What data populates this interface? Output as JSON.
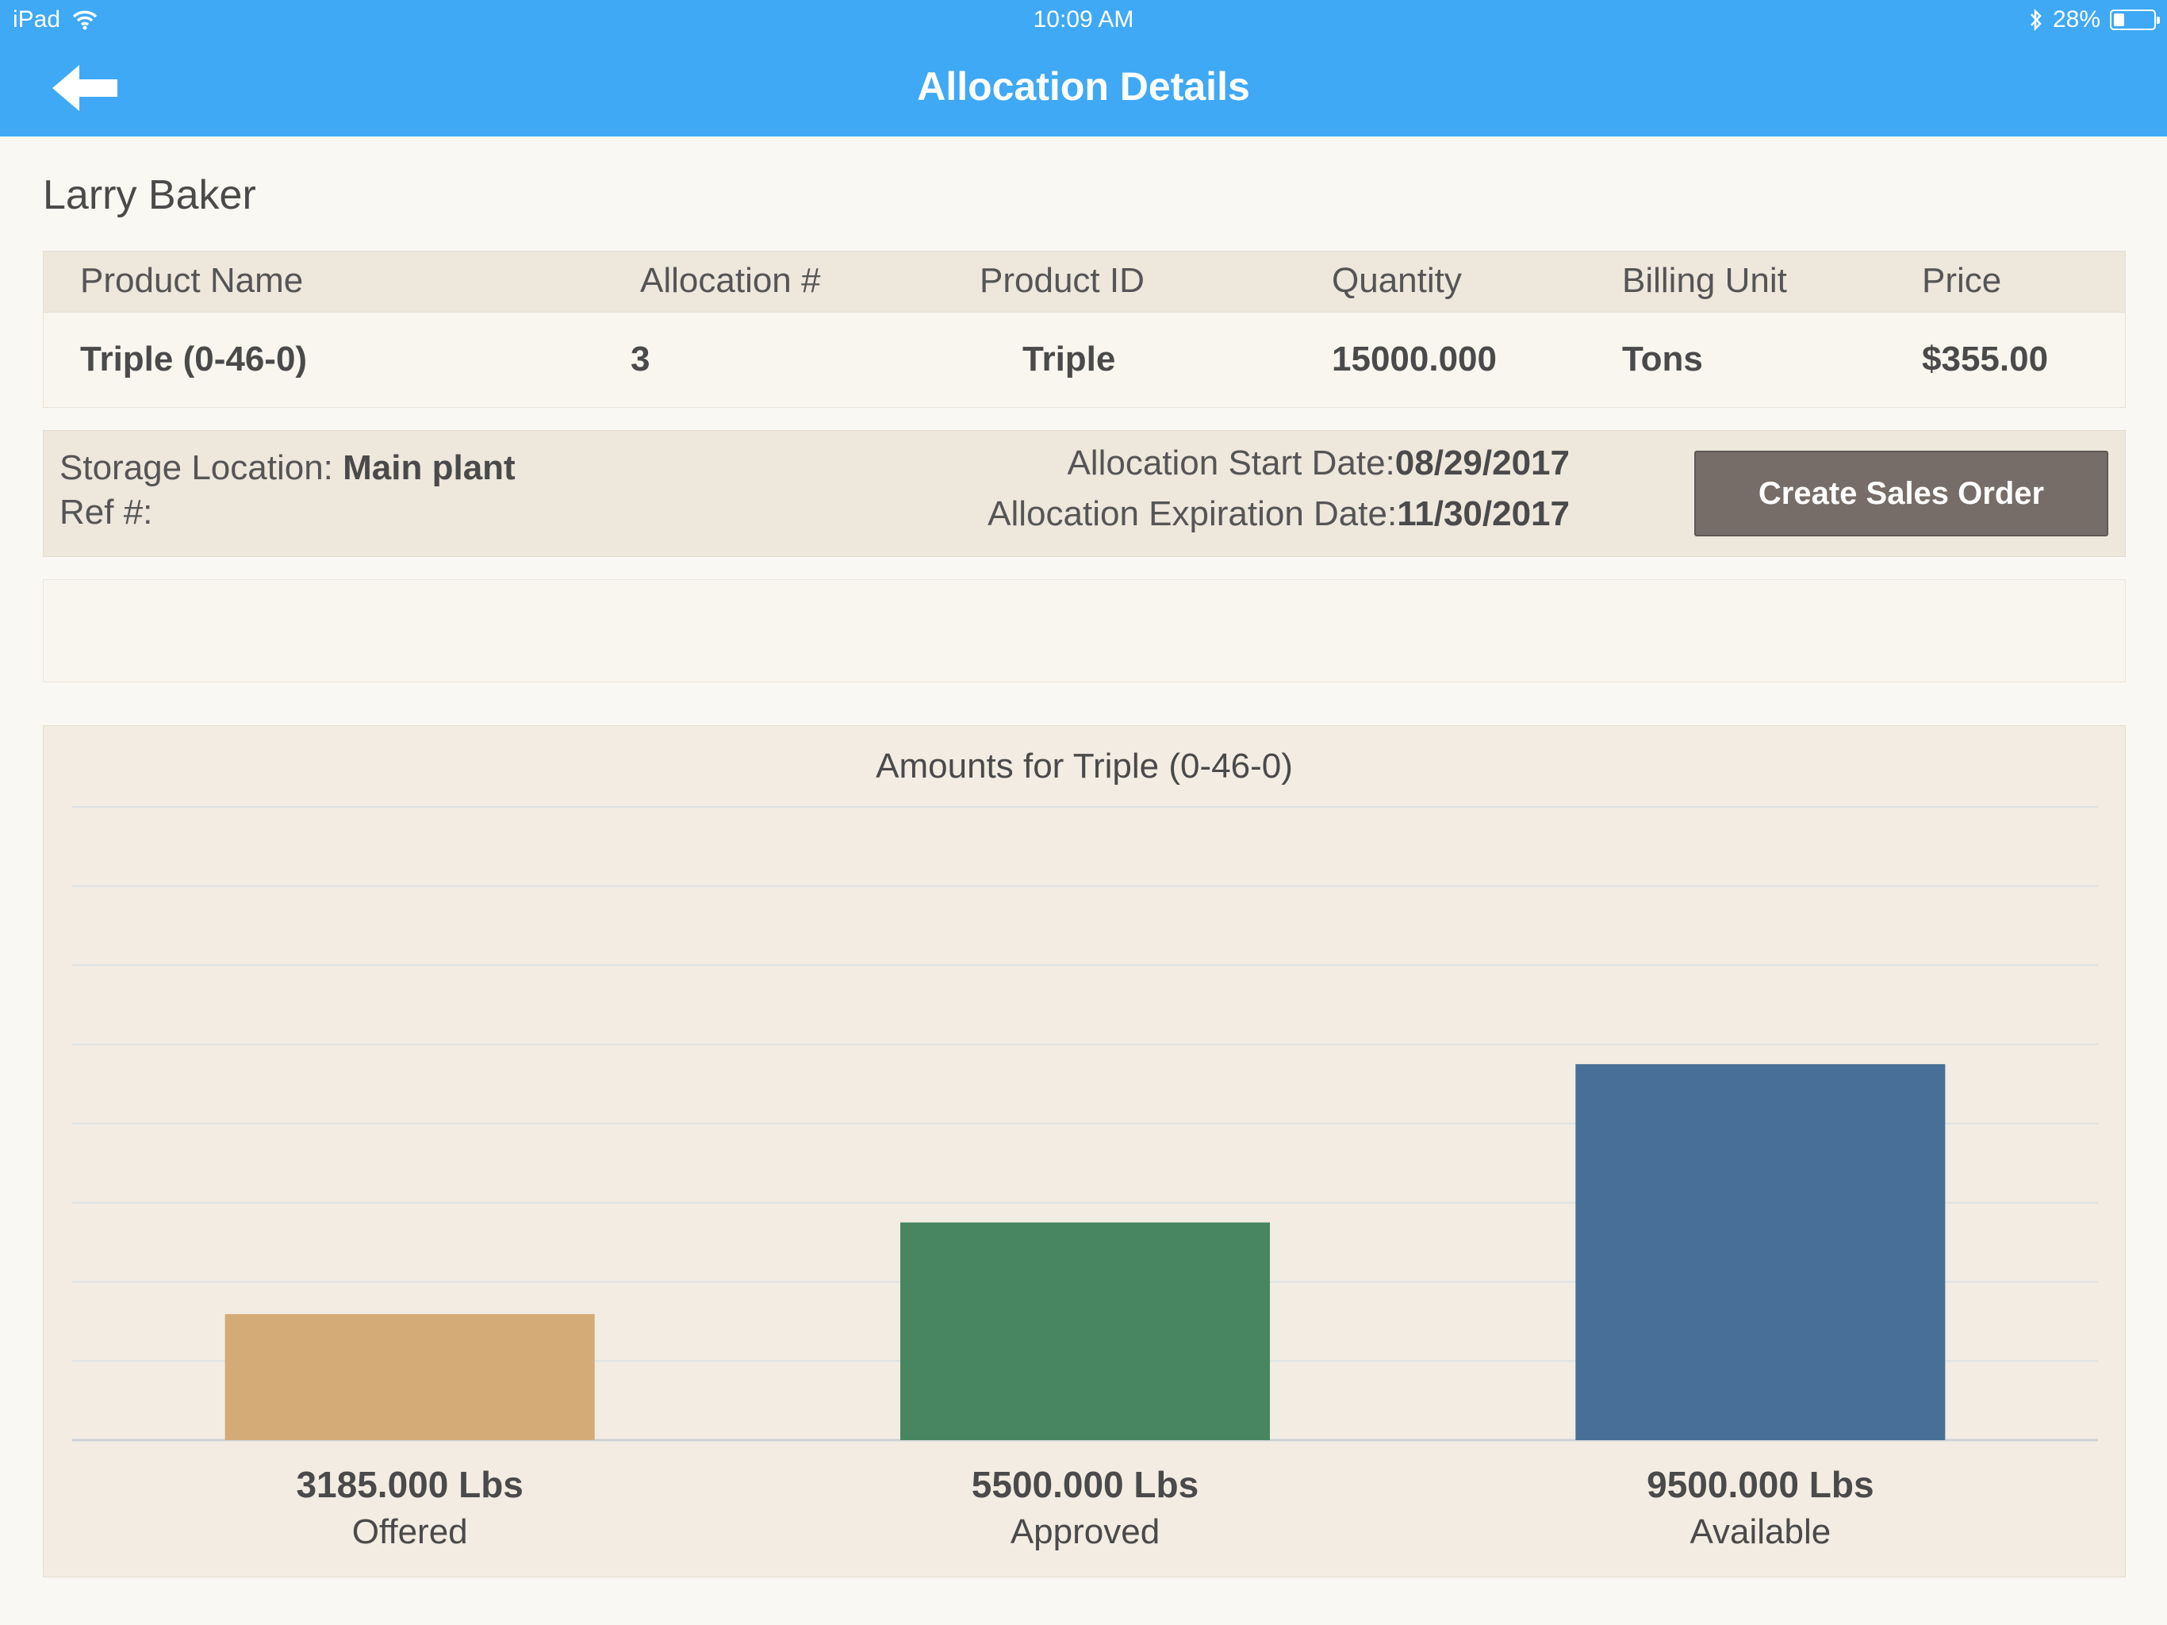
{
  "status_bar": {
    "device": "iPad",
    "time": "10:09 AM",
    "battery": "28%",
    "battery_level": 0.28,
    "icons": [
      "wifi-icon",
      "bluetooth-icon",
      "battery-icon"
    ]
  },
  "nav": {
    "title": "Allocation Details",
    "back_icon": "back-arrow-icon"
  },
  "customer": {
    "name": "Larry Baker"
  },
  "table": {
    "headers": [
      "Product Name",
      "Allocation #",
      "Product ID",
      "Quantity",
      "Billing Unit",
      "Price"
    ],
    "row": [
      "Triple (0-46-0)",
      "3",
      "Triple",
      "15000.000",
      "Tons",
      "$355.00"
    ]
  },
  "info": {
    "storage_label": "Storage Location:",
    "storage_value": "Main plant",
    "ref_label": "Ref #:",
    "ref_value": "",
    "start_label": "Allocation Start Date:",
    "start_value": "08/29/2017",
    "expiration_label": "Allocation Expiration Date:",
    "expiration_value": "11/30/2017"
  },
  "actions": {
    "create_sales_order": "Create Sales Order"
  },
  "chart_data": {
    "type": "bar",
    "title": "Amounts for Triple (0-46-0)",
    "categories": [
      "Offered",
      "Approved",
      "Available"
    ],
    "values": [
      3185,
      5500,
      9500
    ],
    "value_labels": [
      "3185.000 Lbs",
      "5500.000 Lbs",
      "9500.000 Lbs"
    ],
    "colors": [
      "#d4ab77",
      "#478660",
      "#476f97"
    ],
    "ylim": [
      0,
      16000
    ],
    "grid": true
  }
}
